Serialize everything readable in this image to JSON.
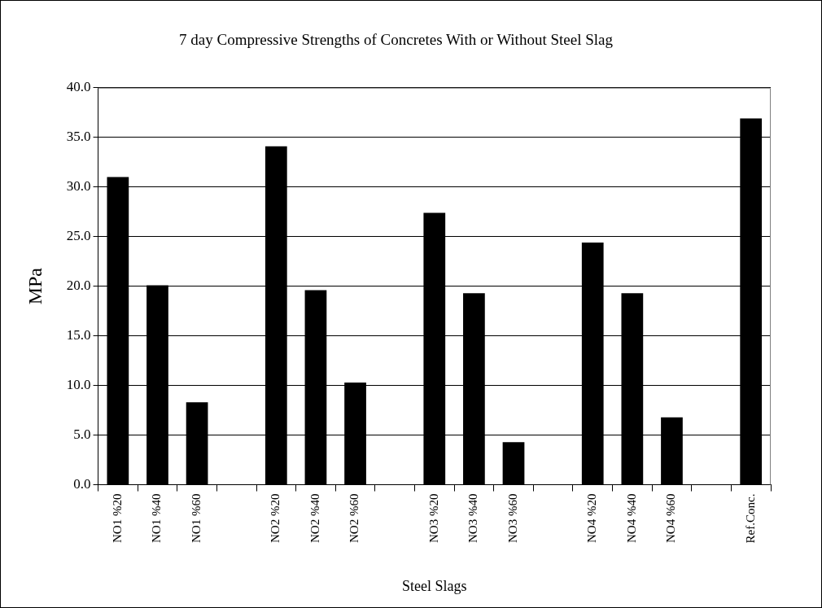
{
  "chart_data": {
    "type": "bar",
    "title": "7 day Compressive Strengths of Concretes With or Without Steel Slag",
    "xlabel": "Steel Slags",
    "ylabel": "MPa",
    "categories": [
      "NO1 %20",
      "NO1 %40",
      "NO1 %60",
      null,
      "NO2 %20",
      "NO2 %40",
      "NO2 %60",
      null,
      "NO3 %20",
      "NO3 %40",
      "NO3 %60",
      null,
      "NO4 %20",
      "NO4 %40",
      "NO4 %60",
      null,
      "Ref.Conc."
    ],
    "values": [
      31.0,
      20.1,
      8.3,
      null,
      34.1,
      19.6,
      10.3,
      null,
      27.4,
      19.3,
      4.3,
      null,
      24.4,
      19.3,
      6.8,
      null,
      36.9
    ],
    "color": "#000000",
    "ylim": [
      0,
      40
    ],
    "yticks": [
      {
        "value": 0,
        "label": "0.0"
      },
      {
        "value": 5,
        "label": "5.0"
      },
      {
        "value": 10,
        "label": "10.0"
      },
      {
        "value": 15,
        "label": "15.0"
      },
      {
        "value": 20,
        "label": "20.0"
      },
      {
        "value": 25,
        "label": "25.0"
      },
      {
        "value": 30,
        "label": "30.0"
      },
      {
        "value": 35,
        "label": "35.0"
      },
      {
        "value": 40,
        "label": "40.0"
      }
    ],
    "grid": "y",
    "legend": false
  }
}
